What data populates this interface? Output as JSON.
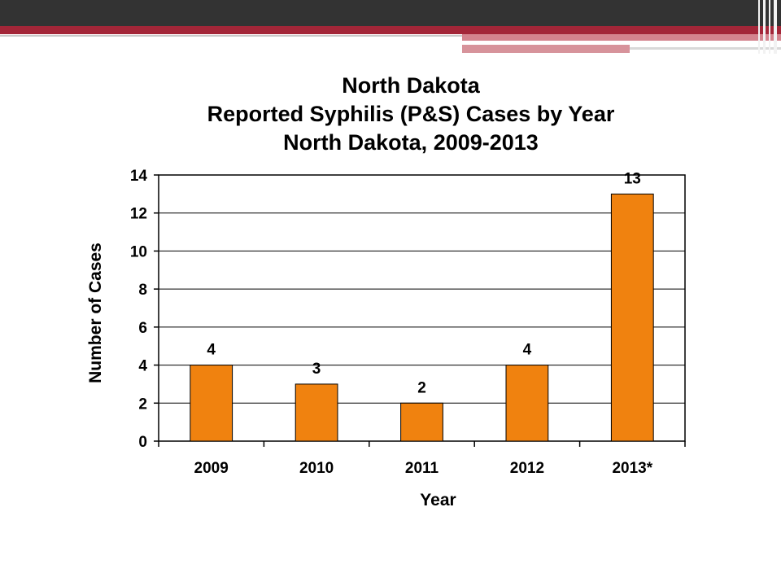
{
  "chart_data": {
    "type": "bar",
    "title_lines": [
      "North Dakota",
      "Reported Syphilis (P&S) Cases by Year",
      "North Dakota, 2009-2013"
    ],
    "categories": [
      "2009",
      "2010",
      "2011",
      "2012",
      "2013*"
    ],
    "values": [
      4,
      3,
      2,
      4,
      13
    ],
    "data_labels": [
      "4",
      "3",
      "2",
      "4",
      "13"
    ],
    "xlabel": "Year",
    "ylabel": "Number of Cases",
    "ylim": [
      0,
      14
    ],
    "yticks": [
      "0",
      "2",
      "4",
      "6",
      "8",
      "10",
      "12",
      "14"
    ],
    "grid": true,
    "legend": "none",
    "bar_color": "#f0820f",
    "bar_edge_color": "#000000"
  }
}
